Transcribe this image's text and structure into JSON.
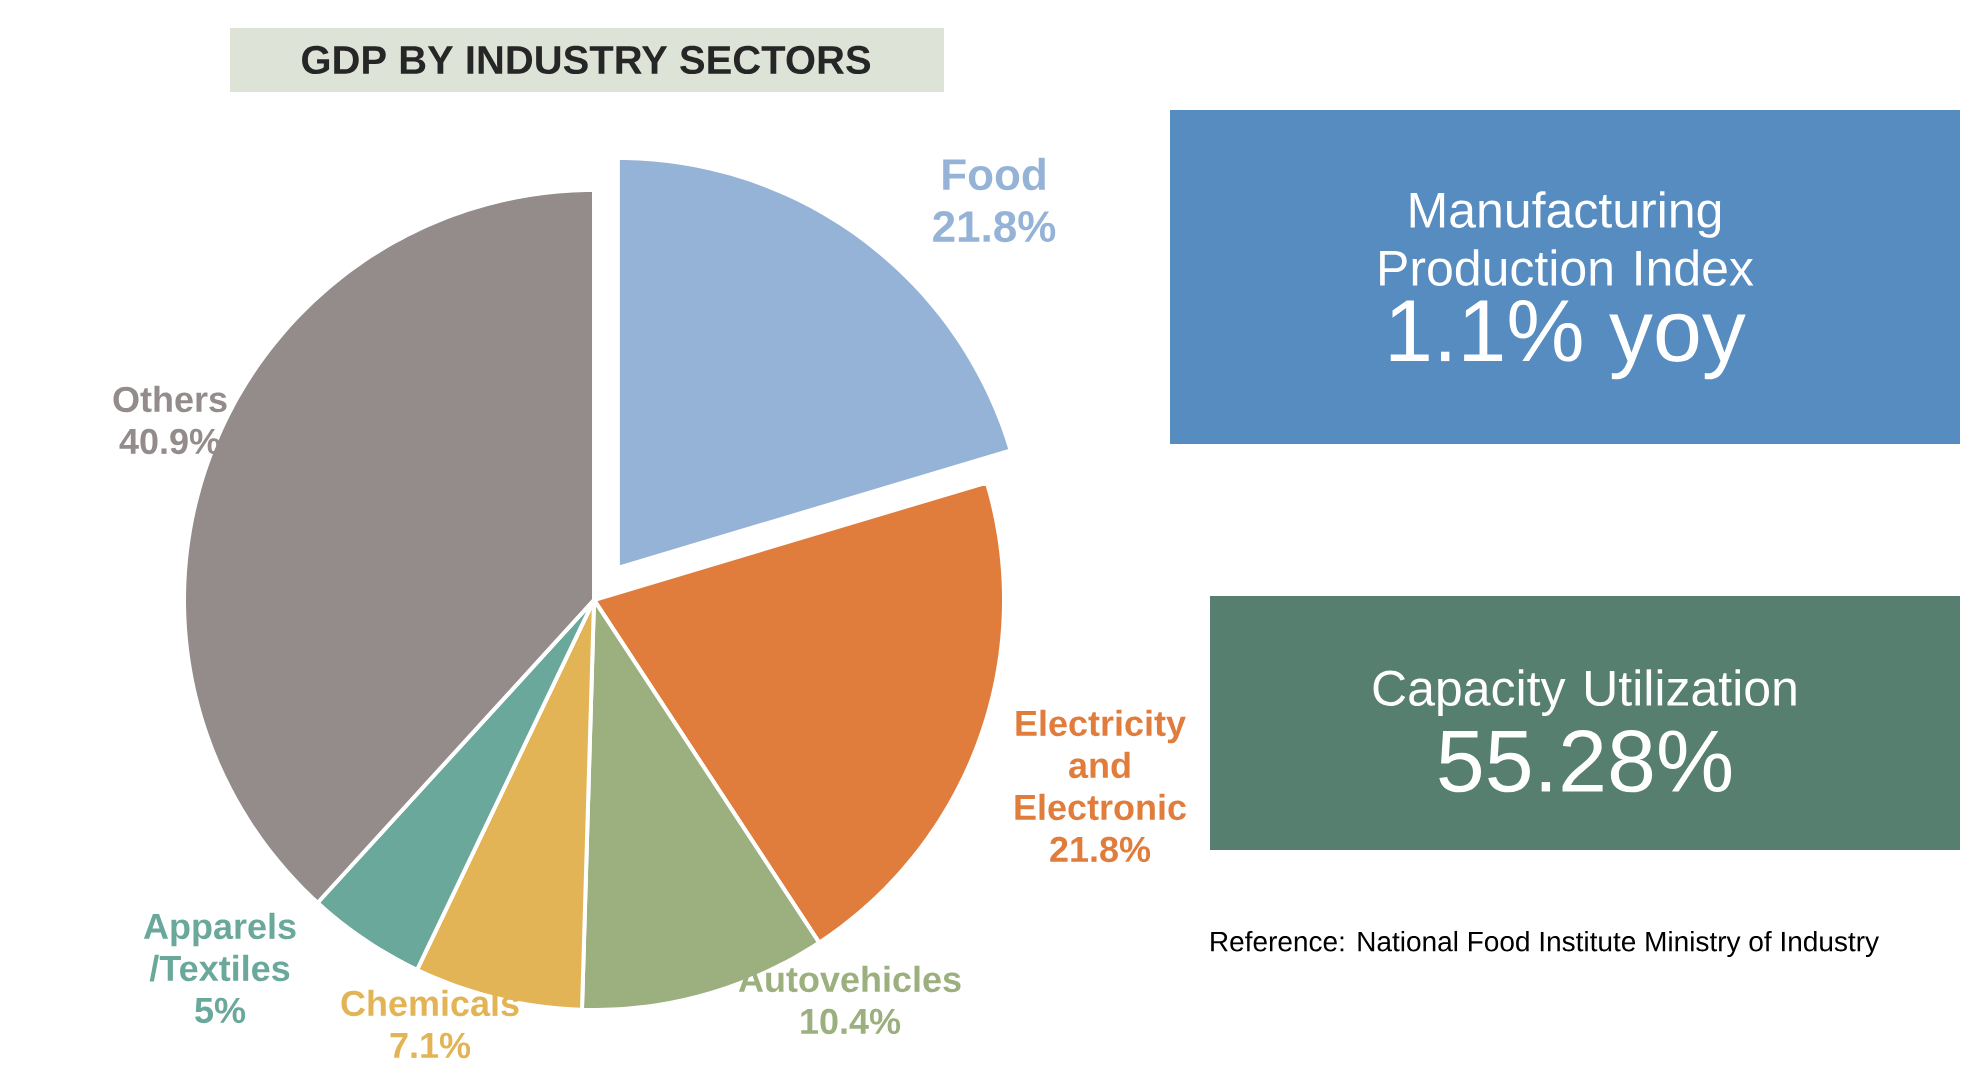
{
  "chart_data": [
    {
      "type": "pie",
      "title": "GDP BY INDUSTRY SECTORS",
      "categories": [
        "Food",
        "Electricity and Electronic",
        "Autovehicles",
        "Chemicals",
        "Apparels /Textiles",
        "Others"
      ],
      "values": [
        21.8,
        21.8,
        10.4,
        7.1,
        5,
        40.9
      ],
      "value_labels": [
        "21.8%",
        "21.8%",
        "10.4%",
        "7.1%",
        "5%",
        "40.9%"
      ],
      "colors": [
        "#95b3d7",
        "#e07d3c",
        "#9caf7e",
        "#e2b456",
        "#6aa89b",
        "#948b8b"
      ],
      "annotations": [
        "Reference: National Food Institute Ministry of Industry"
      ]
    },
    {
      "type": "other",
      "title": "Manufacturing Production Index",
      "annotations": [
        "1.1% yoy"
      ],
      "color": "#568cc0"
    },
    {
      "type": "other",
      "title": "Capacity Utilization",
      "annotations": [
        "55.28%"
      ],
      "color": "#567f70"
    }
  ]
}
